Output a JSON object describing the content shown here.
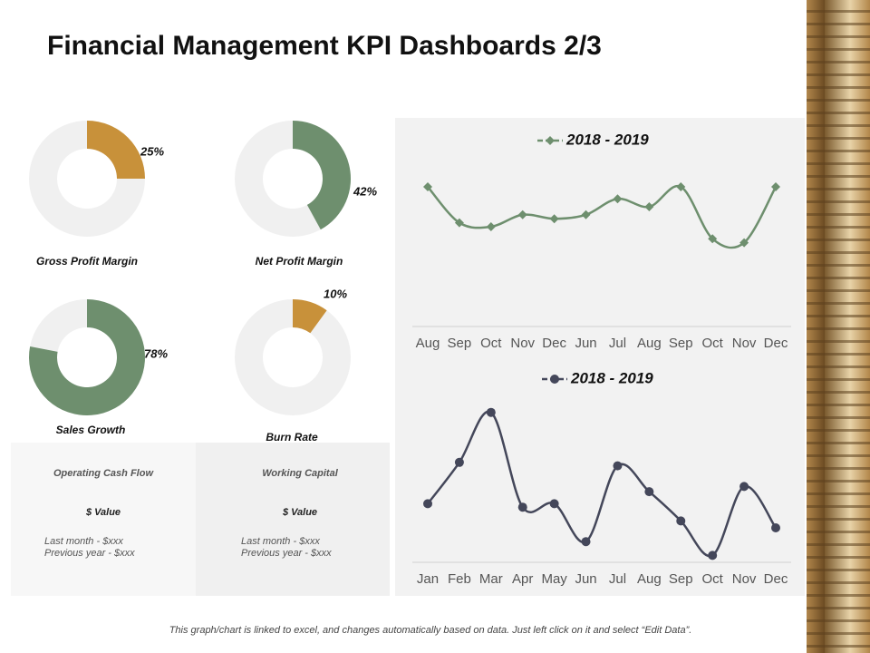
{
  "title": "Financial Management KPI Dashboards 2/3",
  "chart_data": [
    {
      "type": "donut",
      "title": "Gross Profit Margin",
      "values": [
        25
      ],
      "value_labels": [
        "25%"
      ],
      "color": "#c8913a"
    },
    {
      "type": "donut",
      "title": "Net Profit Margin",
      "values": [
        42
      ],
      "value_labels": [
        "42%"
      ],
      "color": "#6e8f6e"
    },
    {
      "type": "donut",
      "title": "Sales Growth",
      "values": [
        78
      ],
      "value_labels": [
        "78%"
      ],
      "color": "#6e8f6e"
    },
    {
      "type": "donut",
      "title": "Burn Rate",
      "values": [
        10
      ],
      "value_labels": [
        "10%"
      ],
      "color": "#c8913a"
    },
    {
      "type": "line",
      "categories": [
        "Aug",
        "Sep",
        "Oct",
        "Nov",
        "Dec",
        "Jun",
        "Jul",
        "Aug",
        "Sep",
        "Oct",
        "Nov",
        "Dec"
      ],
      "series": [
        {
          "name": "2018 - 2019",
          "color": "#6e8f6e",
          "marker": "diamond",
          "values": [
            70,
            52,
            50,
            56,
            54,
            56,
            64,
            60,
            70,
            44,
            42,
            70
          ]
        }
      ],
      "ylim": [
        0,
        100
      ]
    },
    {
      "type": "line",
      "categories": [
        "Jan",
        "Feb",
        "Mar",
        "Apr",
        "May",
        "Jun",
        "Jul",
        "Aug",
        "Sep",
        "Oct",
        "Nov",
        "Dec"
      ],
      "series": [
        {
          "name": "2018 - 2019",
          "color": "#44475a",
          "marker": "circle",
          "values": [
            34,
            58,
            87,
            32,
            34,
            12,
            56,
            41,
            24,
            4,
            44,
            20
          ]
        }
      ],
      "ylim": [
        0,
        100
      ]
    }
  ],
  "cards": [
    {
      "title": "Operating Cash Flow",
      "value": "$ Value",
      "lines": [
        "Last month - $xxx",
        "Previous year - $xxx"
      ]
    },
    {
      "title": "Working Capital",
      "value": "$ Value",
      "lines": [
        "Last month - $xxx",
        "Previous year - $xxx"
      ]
    }
  ],
  "footer": "This graph/chart is linked to excel, and changes automatically based on data. Just left click on it and select “Edit Data”."
}
